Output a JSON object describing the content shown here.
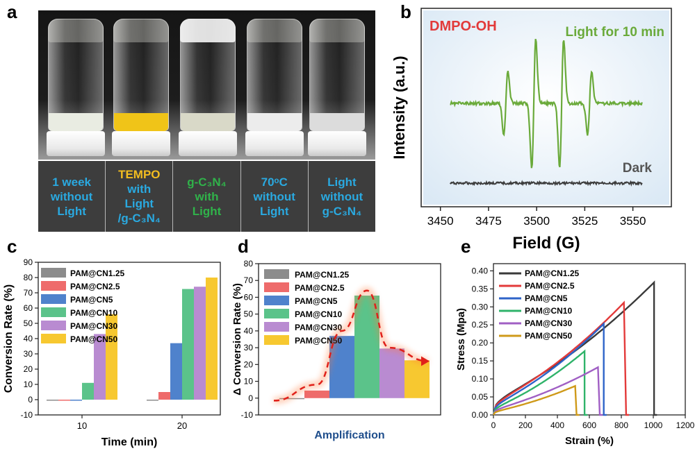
{
  "panels": {
    "a": "a",
    "b": "b",
    "c": "c",
    "d": "d",
    "e": "e"
  },
  "photo_labels": [
    {
      "lines": [
        {
          "t": "1 week",
          "c": "blue"
        },
        {
          "t": "without",
          "c": "blue"
        },
        {
          "t": "Light",
          "c": "blue"
        }
      ]
    },
    {
      "lines": [
        {
          "t": "TEMPO",
          "c": "yellow"
        },
        {
          "t": "with",
          "c": "blue"
        },
        {
          "t": "Light",
          "c": "blue"
        },
        {
          "t": "/g-C₃N₄",
          "c": "blue"
        }
      ]
    },
    {
      "lines": [
        {
          "t": "g-C₃N₄",
          "c": "green"
        },
        {
          "t": "with",
          "c": "green"
        },
        {
          "t": "Light",
          "c": "green"
        }
      ]
    },
    {
      "lines": [
        {
          "t": "70ᵒC",
          "c": "blue"
        },
        {
          "t": "without",
          "c": "blue"
        },
        {
          "t": "Light",
          "c": "blue"
        }
      ]
    },
    {
      "lines": [
        {
          "t": "Light",
          "c": "blue"
        },
        {
          "t": "without",
          "c": "blue"
        },
        {
          "t": "g-C₃N₄",
          "c": "blue"
        }
      ]
    }
  ],
  "vial_liquids": [
    "#e9ece2",
    "#f0c418",
    "#d9d9c8",
    "#ececec",
    "#dcdcdc"
  ],
  "chart_data": [
    {
      "id": "b",
      "type": "line",
      "xlabel": "Field (G)",
      "ylabel": "Intensity (a.u.)",
      "xlim": [
        3440,
        3570
      ],
      "xticks": [
        3450,
        3475,
        3500,
        3525,
        3550
      ],
      "title": "DMPO-OH",
      "background": "#dbe9f5",
      "series": [
        {
          "name": "Light for 10 min",
          "color": "#6aaa3a",
          "signal_peaks": [
            {
              "x": 3484,
              "amp": 0.45
            },
            {
              "x": 3498.5,
              "amp": 0.9
            },
            {
              "x": 3513,
              "amp": 0.9
            },
            {
              "x": 3527.5,
              "amp": 0.45
            }
          ],
          "x_range": [
            3455,
            3555
          ]
        },
        {
          "name": "Dark",
          "color": "#3c3c3c",
          "signal_peaks": [],
          "x_range": [
            3455,
            3555
          ]
        }
      ]
    },
    {
      "id": "c",
      "type": "bar",
      "categories": [
        "10",
        "20"
      ],
      "xlabel": "Time (min)",
      "ylabel": "Conversion Rate (%)",
      "ylim": [
        -10,
        90
      ],
      "yticks": [
        -10,
        0,
        10,
        20,
        30,
        40,
        50,
        60,
        70,
        80,
        90
      ],
      "legend_position": "top-left",
      "series": [
        {
          "name": "PAM@CN1.25",
          "color": "#8c8c8c",
          "values": [
            0,
            0
          ]
        },
        {
          "name": "PAM@CN2.5",
          "color": "#ee6b6b",
          "values": [
            0,
            5
          ]
        },
        {
          "name": "PAM@CN5",
          "color": "#4f82cc",
          "values": [
            0,
            37
          ]
        },
        {
          "name": "PAM@CN10",
          "color": "#5bc38a",
          "values": [
            11,
            72.5
          ]
        },
        {
          "name": "PAM@CN30",
          "color": "#b98bd1",
          "values": [
            43,
            74
          ]
        },
        {
          "name": "PAM@CN50",
          "color": "#f7c830",
          "values": [
            56,
            80
          ]
        }
      ]
    },
    {
      "id": "d",
      "type": "bar",
      "categories": [
        "PAM@CN1.25",
        "PAM@CN2.5",
        "PAM@CN5",
        "PAM@CN10",
        "PAM@CN30",
        "PAM@CN50"
      ],
      "xlabel": "Amplification",
      "ylabel": "Δ Conversion Rate (%)",
      "ylim": [
        -10,
        80
      ],
      "yticks": [
        -10,
        0,
        10,
        20,
        30,
        40,
        50,
        60,
        70,
        80
      ],
      "legend_position": "top-left",
      "values": [
        0,
        4.5,
        37,
        61,
        29.5,
        22.5
      ],
      "colors": [
        "#8c8c8c",
        "#ee6b6b",
        "#4f82cc",
        "#5bc38a",
        "#b98bd1",
        "#f7c830"
      ]
    },
    {
      "id": "e",
      "type": "line",
      "xlabel": "Strain (%)",
      "ylabel": "Stress (Mpa)",
      "xlim": [
        0,
        1200
      ],
      "xticks": [
        0,
        200,
        400,
        600,
        800,
        1000,
        1200
      ],
      "ylim": [
        0,
        0.42
      ],
      "yticks": [
        0.0,
        0.05,
        0.1,
        0.15,
        0.2,
        0.25,
        0.3,
        0.35,
        0.4
      ],
      "legend_position": "top-left",
      "series": [
        {
          "name": "PAM@CN1.25",
          "color": "#3a3a3a",
          "break_strain": 1005,
          "max_stress": 0.368
        },
        {
          "name": "PAM@CN2.5",
          "color": "#e33a3a",
          "break_strain": 830,
          "max_stress": 0.318
        },
        {
          "name": "PAM@CN5",
          "color": "#2e63c8",
          "break_strain": 690,
          "max_stress": 0.253
        },
        {
          "name": "PAM@CN10",
          "color": "#2fb36a",
          "break_strain": 570,
          "max_stress": 0.177
        },
        {
          "name": "PAM@CN30",
          "color": "#a05fc4",
          "break_strain": 665,
          "max_stress": 0.135
        },
        {
          "name": "PAM@CN50",
          "color": "#cf9a1a",
          "break_strain": 520,
          "max_stress": 0.082
        }
      ]
    }
  ]
}
